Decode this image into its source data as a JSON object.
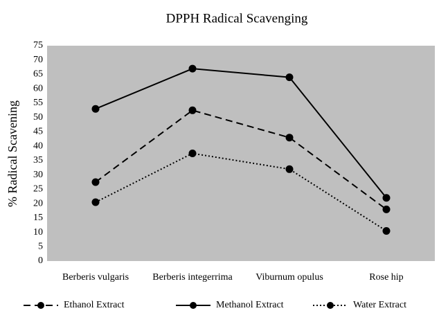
{
  "chart_data": {
    "type": "line",
    "title": "DPPH Radical Scavenging",
    "y_label": "% Radical Scavening",
    "categories": [
      "Berberis vulgaris",
      "Berberis integerrima",
      "Viburnum opulus",
      "Rose hip"
    ],
    "series": [
      {
        "name": "Ethanol Extract",
        "color": "#000000",
        "line_style": "dashed",
        "values": [
          27.5,
          52.5,
          43,
          18
        ]
      },
      {
        "name": "Methanol Extract",
        "color": "#000000",
        "line_style": "solid",
        "values": [
          53,
          67,
          64,
          22
        ]
      },
      {
        "name": "Water Extract",
        "color": "#000000",
        "line_style": "dotted",
        "values": [
          20.5,
          37.5,
          32,
          10.5
        ]
      }
    ],
    "ylim": [
      0,
      75
    ],
    "yticks": [
      0,
      5,
      10,
      15,
      20,
      25,
      30,
      35,
      40,
      45,
      50,
      55,
      60,
      65,
      70,
      75
    ],
    "plot_background": "#bfbfbf",
    "grid": false,
    "legend": "bottom"
  }
}
